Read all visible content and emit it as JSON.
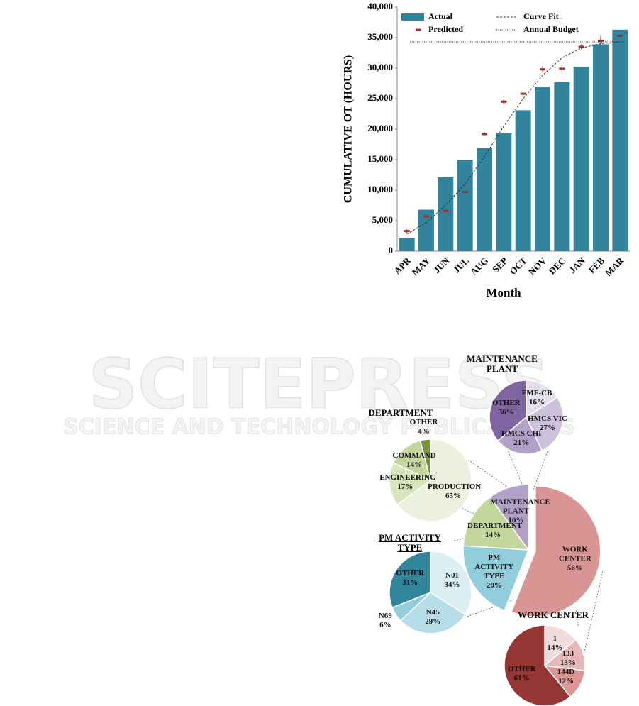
{
  "watermark": {
    "title": "SCITEPRESS",
    "subtitle": "SCIENCE AND TECHNOLOGY PUBLICATIONS"
  },
  "chart_data": [
    {
      "type": "bar",
      "x_label": "Month",
      "y_label": "CUMULATIVE OT (HOURS)",
      "categories": [
        "APR",
        "MAY",
        "JUN",
        "JUL",
        "AUG",
        "SEP",
        "OCT",
        "NOV",
        "DEC",
        "JAN",
        "FEB",
        "MAR"
      ],
      "ylim": [
        0,
        40000
      ],
      "yticks": [
        0,
        {
          "value": 5000,
          "label": "5,000"
        },
        {
          "value": 10000,
          "label": "10,000"
        },
        {
          "value": 15000,
          "label": "15,000"
        },
        {
          "value": 20000,
          "label": "20,000"
        },
        {
          "value": 25000,
          "label": "25,000"
        },
        {
          "value": 30000,
          "label": "30,000"
        },
        {
          "value": 35000,
          "label": "35,000"
        },
        {
          "value": 40000,
          "label": "40,000"
        }
      ],
      "series": [
        {
          "name": "Actual",
          "style": "bar",
          "color": "#31849b",
          "values": [
            2200,
            6800,
            12100,
            15000,
            16900,
            19400,
            23100,
            26900,
            27700,
            30200,
            33900,
            36300
          ]
        },
        {
          "name": "Predicted",
          "style": "marker",
          "color": "#a0302a",
          "values": [
            3300,
            5700,
            6600,
            9700,
            19200,
            24500,
            25800,
            29800,
            29900,
            33500,
            34500,
            35300
          ],
          "errors": [
            300,
            200,
            200,
            200,
            300,
            400,
            400,
            500,
            700,
            400,
            800,
            200
          ]
        },
        {
          "name": "Curve Fit",
          "style": "dashed",
          "color": "#333333",
          "values": [
            2800,
            4700,
            7500,
            11000,
            15500,
            20500,
            25000,
            28800,
            31700,
            33300,
            34000,
            34300
          ]
        },
        {
          "name": "Annual Budget",
          "style": "dotted",
          "color": "#222222",
          "value": 34300
        }
      ]
    },
    {
      "type": "pie",
      "labels": [
        "WORK CENTER",
        "PM ACTIVITY TYPE",
        "DEPARTMENT",
        "MAINTENANCE PLANT"
      ],
      "values": [
        56,
        20,
        14,
        10
      ],
      "value_labels": [
        "56%",
        "20%",
        "14%",
        "10%"
      ],
      "colors": [
        "#d99594",
        "#92cddc",
        "#c3d69b",
        "#b2a1c7"
      ]
    },
    {
      "type": "pie",
      "title": "MAINTENANCE PLANT",
      "labels": [
        "FMF-CB",
        "HMCS VIC",
        "HMCS CHI",
        "OTHER"
      ],
      "values": [
        16,
        27,
        21,
        36
      ],
      "value_labels": [
        "16%",
        "27%",
        "21%",
        "36%"
      ],
      "colors": [
        "#e4dfec",
        "#ccc0da",
        "#b1a0c7",
        "#8064a2"
      ]
    },
    {
      "type": "pie",
      "title": "DEPARTMENT",
      "labels": [
        "PRODUCTION",
        "ENGINEERING",
        "COMMAND",
        "OTHER"
      ],
      "values": [
        65,
        17,
        14,
        4
      ],
      "value_labels": [
        "65%",
        "17%",
        "14%",
        "4%"
      ],
      "colors": [
        "#ebf1de",
        "#d8e4bc",
        "#c4d79b",
        "#76933c"
      ]
    },
    {
      "type": "pie",
      "title": "PM ACTIVITY TYPE",
      "labels": [
        "N01",
        "N45",
        "N69",
        "OTHER"
      ],
      "values": [
        34,
        29,
        6,
        31
      ],
      "value_labels": [
        "34%",
        "29%",
        "6%",
        "31%"
      ],
      "colors": [
        "#daeef3",
        "#b7dee8",
        "#92cddc",
        "#31869b"
      ]
    },
    {
      "type": "pie",
      "title": "WORK CENTER",
      "labels": [
        "1",
        "133",
        "144D",
        "OTHER"
      ],
      "values": [
        14,
        13,
        12,
        61
      ],
      "value_labels": [
        "14%",
        "13%",
        "12%",
        "61%"
      ],
      "colors": [
        "#f2dcdb",
        "#e6b8b7",
        "#da9694",
        "#963634"
      ]
    }
  ]
}
